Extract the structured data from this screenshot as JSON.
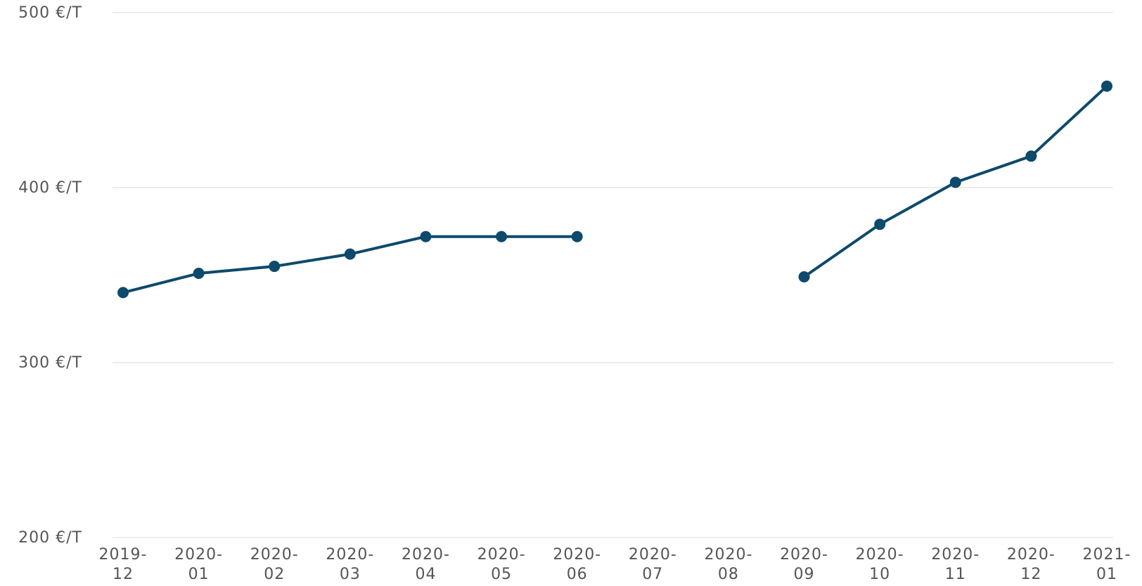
{
  "chart_data": {
    "type": "line",
    "title": "",
    "xlabel": "",
    "ylabel": "",
    "x": [
      [
        "2019-",
        "12"
      ],
      [
        "2020-",
        "01"
      ],
      [
        "2020-",
        "02"
      ],
      [
        "2020-",
        "03"
      ],
      [
        "2020-",
        "04"
      ],
      [
        "2020-",
        "05"
      ],
      [
        "2020-",
        "06"
      ],
      [
        "2020-",
        "07"
      ],
      [
        "2020-",
        "08"
      ],
      [
        "2020-",
        "09"
      ],
      [
        "2020-",
        "10"
      ],
      [
        "2020-",
        "11"
      ],
      [
        "2020-",
        "12"
      ],
      [
        "2021-",
        "01"
      ]
    ],
    "series": [
      {
        "values": [
          340,
          351,
          355,
          362,
          372,
          372,
          372,
          null,
          null,
          349,
          379,
          403,
          418,
          458
        ],
        "color": "#0d4a6b"
      }
    ],
    "ylim": [
      200,
      500
    ],
    "yticks": [
      {
        "value": 200,
        "label": "200 €/T"
      },
      {
        "value": 300,
        "label": "300 €/T"
      },
      {
        "value": 400,
        "label": "400 €/T"
      },
      {
        "value": 500,
        "label": "500 €/T"
      }
    ],
    "grid": true,
    "legend": "none"
  }
}
